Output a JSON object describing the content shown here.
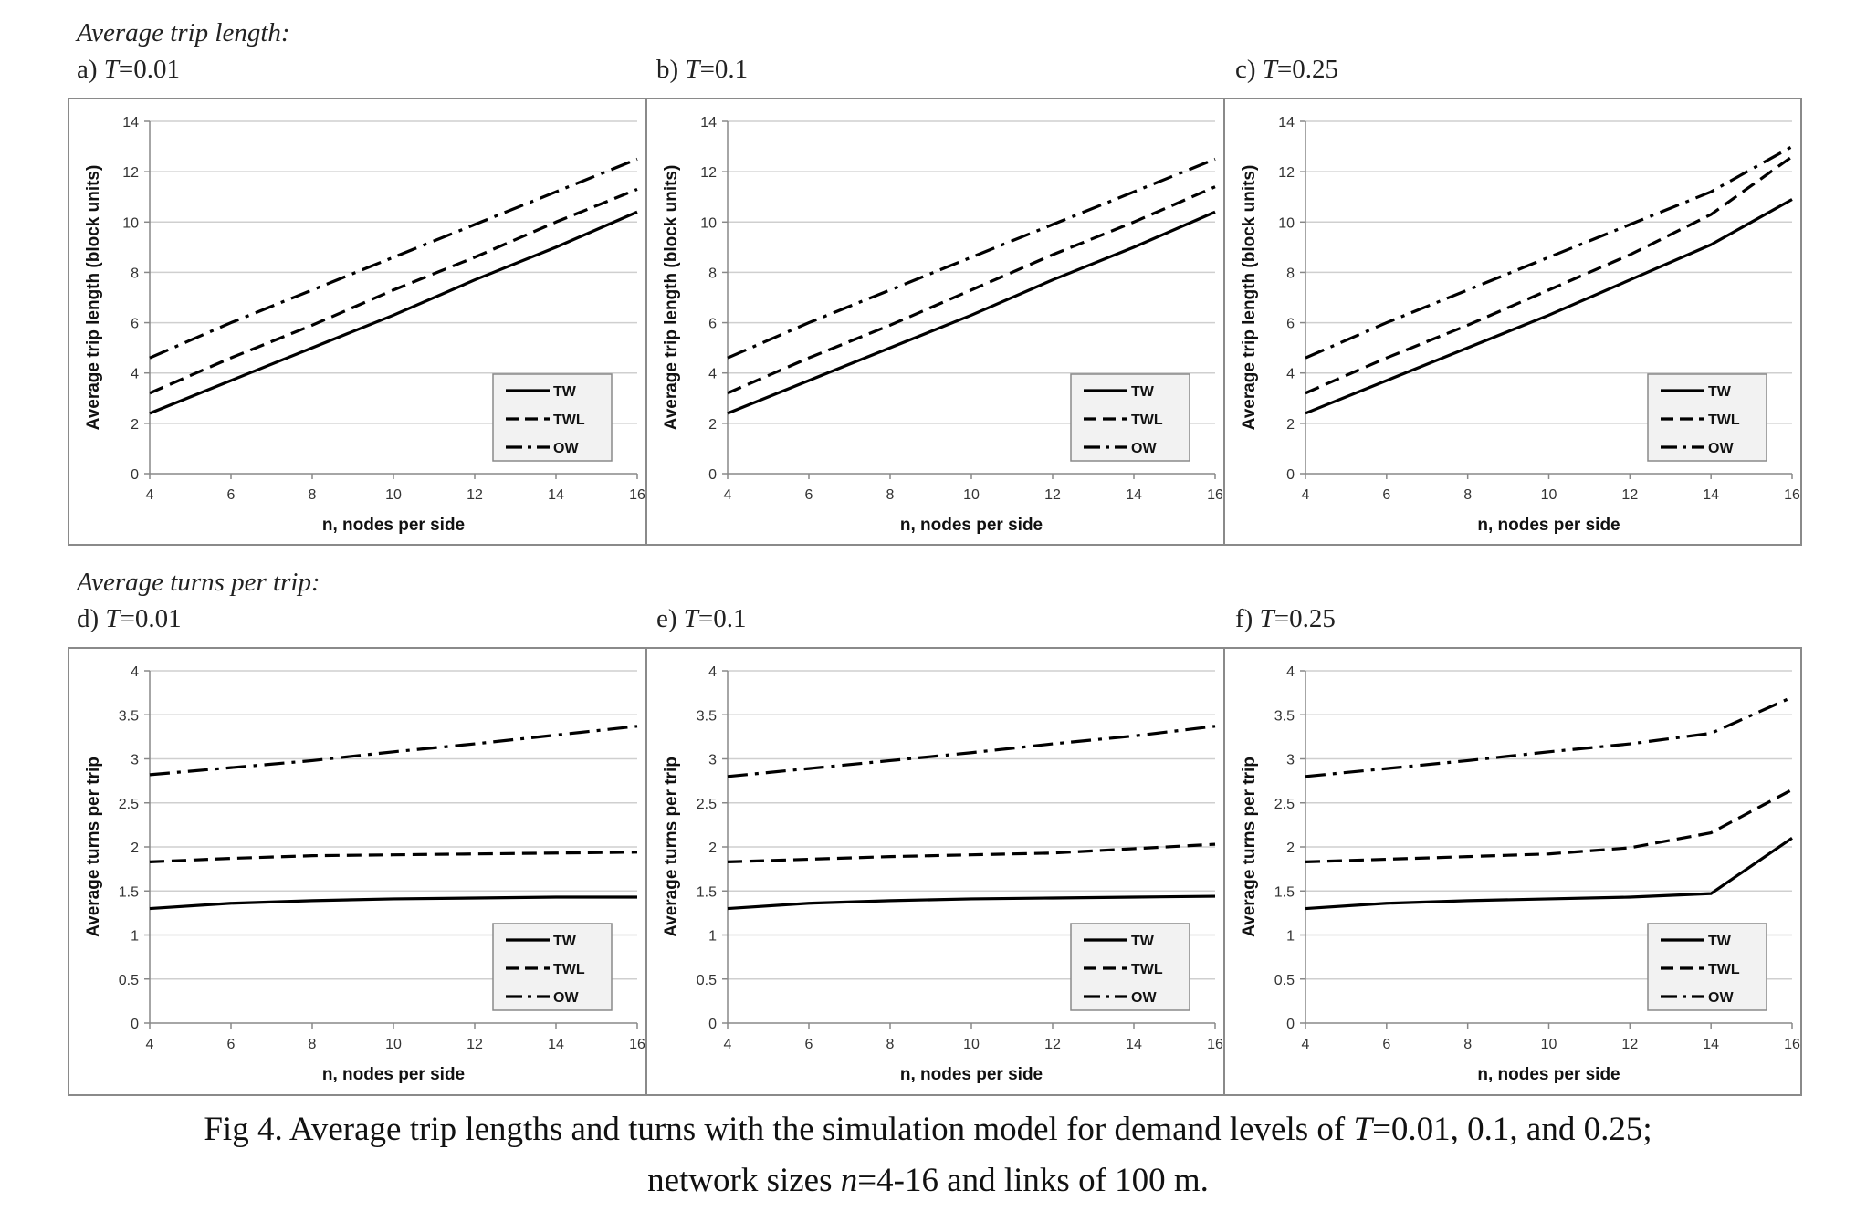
{
  "section_top": "Average trip length:",
  "section_bottom": "Average turns per trip:",
  "caption": {
    "line1_pre": "Fig 4. Average trip lengths and turns with the simulation model for demand levels of ",
    "T": "T",
    "line1_post": "=0.01, 0.1, and 0.25;",
    "line2_pre": "network sizes ",
    "n": "n",
    "line2_post": "=4-16 and links of 100 m."
  },
  "chart_data": [
    {
      "type": "line",
      "panel": "a)",
      "T_label": "T",
      "T_value": "=0.01",
      "xlabel": "n, nodes per side",
      "ylabel": "Average trip length (block units)",
      "x": [
        4,
        6,
        8,
        10,
        12,
        14,
        16
      ],
      "xlim": [
        4,
        16
      ],
      "ylim": [
        0,
        14
      ],
      "xticks": [
        "4",
        "6",
        "8",
        "10",
        "12",
        "14",
        "16"
      ],
      "yticks": [
        "0",
        "2",
        "4",
        "6",
        "8",
        "10",
        "12",
        "14"
      ],
      "grid": "horizontal",
      "legend": "bottom-right",
      "series": [
        {
          "name": "TW",
          "values": [
            2.4,
            3.7,
            5.0,
            6.3,
            7.7,
            9.0,
            10.4
          ]
        },
        {
          "name": "TWL",
          "values": [
            3.2,
            4.6,
            5.9,
            7.3,
            8.6,
            10.0,
            11.3
          ]
        },
        {
          "name": "OW",
          "values": [
            4.6,
            6.0,
            7.3,
            8.6,
            9.9,
            11.2,
            12.5
          ]
        }
      ]
    },
    {
      "type": "line",
      "panel": "b)",
      "T_label": "T",
      "T_value": "=0.1",
      "xlabel": "n, nodes per side",
      "ylabel": "Average trip length (block units)",
      "x": [
        4,
        6,
        8,
        10,
        12,
        14,
        16
      ],
      "xlim": [
        4,
        16
      ],
      "ylim": [
        0,
        14
      ],
      "xticks": [
        "4",
        "6",
        "8",
        "10",
        "12",
        "14",
        "16"
      ],
      "yticks": [
        "0",
        "2",
        "4",
        "6",
        "8",
        "10",
        "12",
        "14"
      ],
      "grid": "horizontal",
      "legend": "bottom-right",
      "series": [
        {
          "name": "TW",
          "values": [
            2.4,
            3.7,
            5.0,
            6.3,
            7.7,
            9.0,
            10.4
          ]
        },
        {
          "name": "TWL",
          "values": [
            3.2,
            4.6,
            5.9,
            7.3,
            8.7,
            10.0,
            11.4
          ]
        },
        {
          "name": "OW",
          "values": [
            4.6,
            6.0,
            7.3,
            8.6,
            9.9,
            11.2,
            12.5
          ]
        }
      ]
    },
    {
      "type": "line",
      "panel": "c)",
      "T_label": "T",
      "T_value": "=0.25",
      "xlabel": "n, nodes per side",
      "ylabel": "Average trip length (block units)",
      "x": [
        4,
        6,
        8,
        10,
        12,
        14,
        16
      ],
      "xlim": [
        4,
        16
      ],
      "ylim": [
        0,
        14
      ],
      "xticks": [
        "4",
        "6",
        "8",
        "10",
        "12",
        "14",
        "16"
      ],
      "yticks": [
        "0",
        "2",
        "4",
        "6",
        "8",
        "10",
        "12",
        "14"
      ],
      "grid": "horizontal",
      "legend": "bottom-right",
      "series": [
        {
          "name": "TW",
          "values": [
            2.4,
            3.7,
            5.0,
            6.3,
            7.7,
            9.1,
            10.9
          ]
        },
        {
          "name": "TWL",
          "values": [
            3.2,
            4.6,
            5.9,
            7.3,
            8.7,
            10.3,
            12.6
          ]
        },
        {
          "name": "OW",
          "values": [
            4.6,
            6.0,
            7.3,
            8.6,
            9.9,
            11.2,
            13.0
          ]
        }
      ]
    },
    {
      "type": "line",
      "panel": "d)",
      "T_label": "T",
      "T_value": "=0.01",
      "xlabel": "n, nodes per side",
      "ylabel": "Average turns per trip",
      "x": [
        4,
        6,
        8,
        10,
        12,
        14,
        16
      ],
      "xlim": [
        4,
        16
      ],
      "ylim": [
        0,
        4
      ],
      "xticks": [
        "4",
        "6",
        "8",
        "10",
        "12",
        "14",
        "16"
      ],
      "yticks": [
        "0",
        "0.5",
        "1",
        "1.5",
        "2",
        "2.5",
        "3",
        "3.5",
        "4"
      ],
      "grid": "horizontal",
      "legend": "bottom-right",
      "series": [
        {
          "name": "TW",
          "values": [
            1.3,
            1.36,
            1.39,
            1.41,
            1.42,
            1.43,
            1.43
          ]
        },
        {
          "name": "TWL",
          "values": [
            1.83,
            1.87,
            1.9,
            1.91,
            1.92,
            1.93,
            1.94
          ]
        },
        {
          "name": "OW",
          "values": [
            2.82,
            2.9,
            2.98,
            3.08,
            3.17,
            3.27,
            3.37
          ]
        }
      ]
    },
    {
      "type": "line",
      "panel": "e)",
      "T_label": "T",
      "T_value": "=0.1",
      "xlabel": "n, nodes per side",
      "ylabel": "Average turns per trip",
      "x": [
        4,
        6,
        8,
        10,
        12,
        14,
        16
      ],
      "xlim": [
        4,
        16
      ],
      "ylim": [
        0,
        4
      ],
      "xticks": [
        "4",
        "6",
        "8",
        "10",
        "12",
        "14",
        "16"
      ],
      "yticks": [
        "0",
        "0.5",
        "1",
        "1.5",
        "2",
        "2.5",
        "3",
        "3.5",
        "4"
      ],
      "grid": "horizontal",
      "legend": "bottom-right",
      "series": [
        {
          "name": "TW",
          "values": [
            1.3,
            1.36,
            1.39,
            1.41,
            1.42,
            1.43,
            1.44
          ]
        },
        {
          "name": "TWL",
          "values": [
            1.83,
            1.86,
            1.89,
            1.91,
            1.93,
            1.98,
            2.03
          ]
        },
        {
          "name": "OW",
          "values": [
            2.8,
            2.89,
            2.98,
            3.07,
            3.17,
            3.26,
            3.37
          ]
        }
      ]
    },
    {
      "type": "line",
      "panel": "f)",
      "T_label": "T",
      "T_value": "=0.25",
      "xlabel": "n, nodes per side",
      "ylabel": "Average turns per trip",
      "x": [
        4,
        6,
        8,
        10,
        12,
        14,
        16
      ],
      "xlim": [
        4,
        16
      ],
      "ylim": [
        0,
        4
      ],
      "xticks": [
        "4",
        "6",
        "8",
        "10",
        "12",
        "14",
        "16"
      ],
      "yticks": [
        "0",
        "0.5",
        "1",
        "1.5",
        "2",
        "2.5",
        "3",
        "3.5",
        "4"
      ],
      "grid": "horizontal",
      "legend": "bottom-right",
      "series": [
        {
          "name": "TW",
          "values": [
            1.3,
            1.36,
            1.39,
            1.41,
            1.43,
            1.47,
            2.1
          ]
        },
        {
          "name": "TWL",
          "values": [
            1.83,
            1.86,
            1.89,
            1.92,
            1.99,
            2.16,
            2.65
          ]
        },
        {
          "name": "OW",
          "values": [
            2.8,
            2.89,
            2.98,
            3.08,
            3.17,
            3.29,
            3.7
          ]
        }
      ]
    }
  ]
}
